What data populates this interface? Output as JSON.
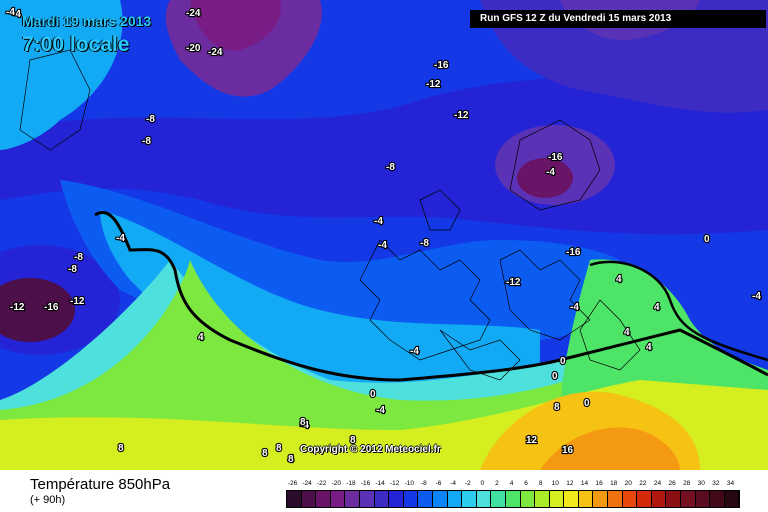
{
  "header": {
    "date_label": "Mardi 19 mars 2013",
    "time_label": "7:00 locale",
    "run_label": "Run GFS 12 Z du Vendredi 15 mars 2013"
  },
  "map": {
    "isotherm_labels": [
      "-24",
      "-20",
      "-24",
      "-4",
      "-8",
      "-16",
      "-16",
      "-12",
      "-12",
      "-8",
      "-8",
      "-8",
      "-12",
      "-16",
      "-4",
      "-4",
      "-4",
      "-8",
      "-12",
      "-16",
      "-4",
      "0",
      "-4",
      "-4",
      "-4",
      "-4",
      "-8",
      "-12",
      "4",
      "4",
      "4",
      "4",
      "4",
      "0",
      "0",
      "0",
      "-4",
      "0",
      "-4",
      "4",
      "8",
      "8",
      "8",
      "8",
      "8",
      "8",
      "8",
      "12",
      "16"
    ],
    "copyright": "Copyright © 2012 Meteociel.fr"
  },
  "footer": {
    "variable_title": "Température 850hPa",
    "lead_time": "(+ 90h)"
  },
  "legend": {
    "values": [
      "-26",
      "-24",
      "-22",
      "-20",
      "-18",
      "-16",
      "-14",
      "-12",
      "-10",
      "-8",
      "-6",
      "-4",
      "-2",
      "0",
      "2",
      "4",
      "6",
      "8",
      "10",
      "12",
      "14",
      "16",
      "18",
      "20",
      "22",
      "24",
      "26",
      "28",
      "30",
      "32",
      "34"
    ],
    "colors": [
      "#2a0d2c",
      "#4c0f4a",
      "#6a1468",
      "#7a1c86",
      "#6a2c9e",
      "#5a32b6",
      "#3c2cc4",
      "#2424d6",
      "#1438e6",
      "#0c5cf2",
      "#0a84f6",
      "#12aaf4",
      "#2cccec",
      "#4ee0dc",
      "#3fe0a0",
      "#4ee468",
      "#7ce840",
      "#a8ec28",
      "#d4ee20",
      "#f2e81c",
      "#f6c214",
      "#f49a12",
      "#f0720e",
      "#e8480c",
      "#d42a0c",
      "#b01810",
      "#8a1014",
      "#741020",
      "#5c0c20",
      "#420a18",
      "#280810"
    ]
  }
}
